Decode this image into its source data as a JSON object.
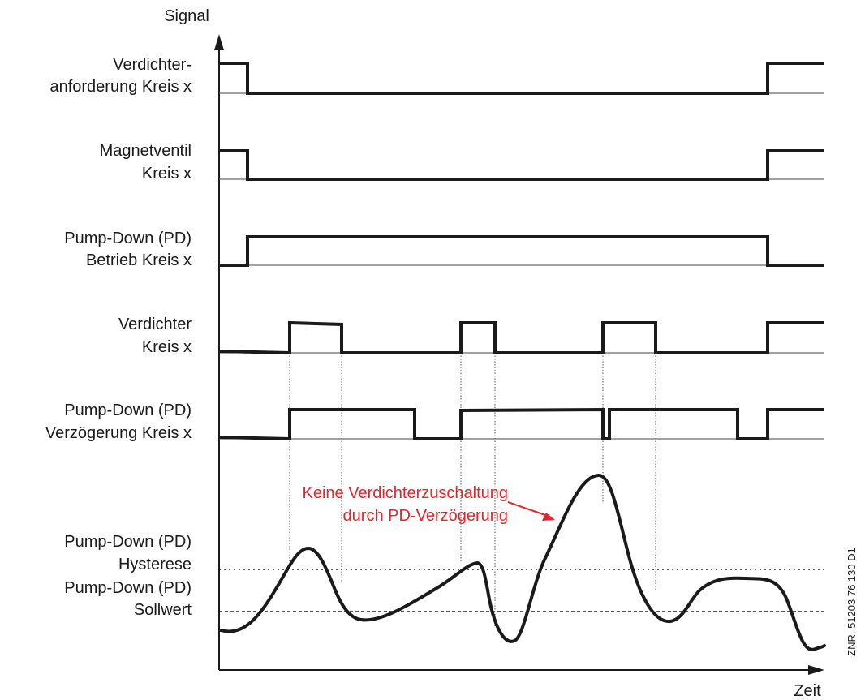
{
  "axes": {
    "y_label": "Signal",
    "x_label": "Zeit"
  },
  "signals": [
    {
      "line1": "Verdichter-",
      "line2": "anforderung Kreis x"
    },
    {
      "line1": "Magnetventil",
      "line2": "Kreis x"
    },
    {
      "line1": "Pump-Down (PD)",
      "line2": "Betrieb Kreis x"
    },
    {
      "line1": "Verdichter",
      "line2": "Kreis x"
    },
    {
      "line1": "Pump-Down (PD)",
      "line2": "Verzögerung Kreis x"
    }
  ],
  "thresholds": {
    "hysterese": {
      "line1": "Pump-Down (PD)",
      "line2": "Hysterese"
    },
    "sollwert": {
      "line1": "Pump-Down (PD)",
      "line2": "Sollwert"
    }
  },
  "annotation": {
    "line1": "Keine Verdichterzuschaltung",
    "line2": "durch PD-Verzögerung",
    "color": "#e1262d"
  },
  "document_number": "ZNR. 51203 76 130 D1"
}
